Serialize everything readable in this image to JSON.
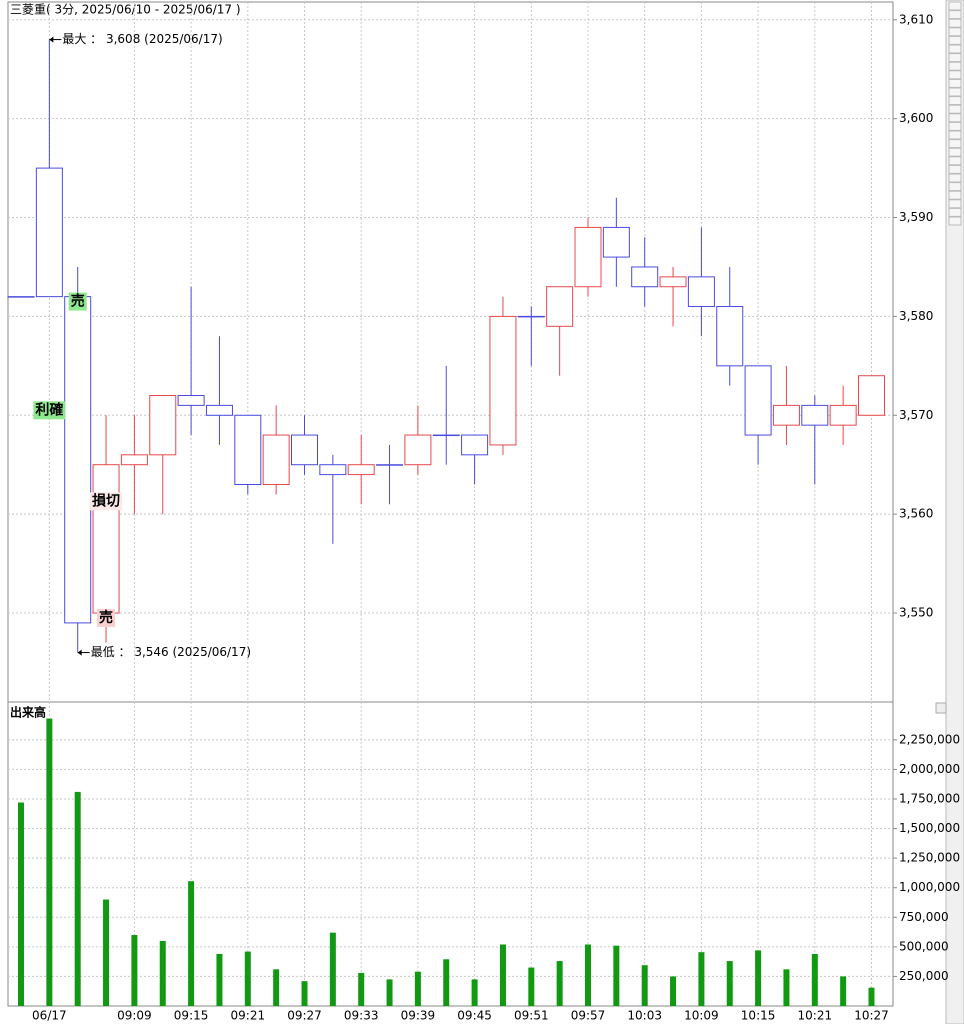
{
  "chart_data": [
    {
      "type": "candlestick",
      "title": "三菱重( 3分, 2025/06/10 - 2025/06/17 )",
      "open": [
        3582,
        3595,
        3582,
        3550,
        3565,
        3566,
        3572,
        3571,
        3570,
        3563,
        3568,
        3565,
        3564,
        3565,
        3565,
        3568,
        3568,
        3567,
        3580,
        3579,
        3583,
        3589,
        3585,
        3583,
        3584,
        3581,
        3575,
        3569,
        3571,
        3569,
        3570
      ],
      "high": [
        3582,
        3608,
        3585,
        3570,
        3570,
        3572,
        3583,
        3578,
        3570,
        3571,
        3570,
        3566,
        3568,
        3567,
        3571,
        3575,
        3568,
        3582,
        3581,
        3583,
        3590,
        3592,
        3588,
        3585,
        3589,
        3585,
        3575,
        3575,
        3572,
        3573,
        3574
      ],
      "low": [
        3582,
        3582,
        3546,
        3547,
        3560,
        3560,
        3568,
        3567,
        3562,
        3562,
        3564,
        3557,
        3561,
        3561,
        3564,
        3565,
        3563,
        3566,
        3575,
        3574,
        3582,
        3583,
        3581,
        3579,
        3578,
        3573,
        3565,
        3567,
        3563,
        3567,
        3570
      ],
      "close": [
        3582,
        3582,
        3549,
        3565,
        3566,
        3572,
        3571,
        3570,
        3563,
        3568,
        3565,
        3564,
        3565,
        3565,
        3568,
        3568,
        3566,
        3580,
        3580,
        3583,
        3589,
        3586,
        3583,
        3584,
        3581,
        3575,
        3568,
        3571,
        3569,
        3571,
        3574
      ],
      "up_color": "#e8474c",
      "down_color": "#4a4ae0",
      "ylim": [
        3541,
        3611.8
      ],
      "yticks": [
        {
          "value": 3550,
          "label": "3,550"
        },
        {
          "value": 3560,
          "label": "3,560"
        },
        {
          "value": 3570,
          "label": "3,570"
        },
        {
          "value": 3580,
          "label": "3,580"
        },
        {
          "value": 3590,
          "label": "3,590"
        },
        {
          "value": 3600,
          "label": "3,600"
        },
        {
          "value": 3610,
          "label": "3,610"
        }
      ],
      "grid": true,
      "annotations": [
        {
          "text": "最大 ： 3,608 (2025/06/17)",
          "index": 1,
          "value": 3608
        },
        {
          "text": "最低 ： 3,546 (2025/06/17)",
          "index": 2,
          "value": 3546
        }
      ],
      "signals": [
        {
          "text": "売",
          "index": 2,
          "value": 3581.5,
          "color": "#8ee88e"
        },
        {
          "text": "利確",
          "index": 1,
          "value": 3570.5,
          "color": "#8ee88e"
        },
        {
          "text": "損切",
          "index": 3,
          "value": 3561.3,
          "color": "#fde8e8"
        },
        {
          "text": "売",
          "index": 3,
          "value": 3549.5,
          "color": "#f8d0d0"
        }
      ]
    },
    {
      "type": "bar",
      "title": "出来高",
      "color": "#119911",
      "categories": [
        null,
        "06/17",
        null,
        null,
        "09:09",
        null,
        "09:15",
        null,
        "09:21",
        null,
        "09:27",
        null,
        "09:33",
        null,
        "09:39",
        null,
        "09:45",
        null,
        "09:51",
        null,
        "09:57",
        null,
        "10:03",
        null,
        "10:09",
        null,
        "10:15",
        null,
        "10:21",
        null,
        "10:27"
      ],
      "values": [
        1720000,
        2430000,
        1810000,
        900000,
        600000,
        550000,
        1055000,
        440000,
        460000,
        310000,
        210000,
        620000,
        280000,
        225000,
        290000,
        395000,
        225000,
        520000,
        325000,
        380000,
        520000,
        510000,
        345000,
        250000,
        455000,
        380000,
        470000,
        310000,
        440000,
        250000,
        155000
      ],
      "ylim": [
        0,
        2570000
      ],
      "yticks": [
        {
          "value": 250000,
          "label": "250,000"
        },
        {
          "value": 500000,
          "label": "500,000"
        },
        {
          "value": 750000,
          "label": "750,000"
        },
        {
          "value": 1000000,
          "label": "1,000,000"
        },
        {
          "value": 1250000,
          "label": "1,250,000"
        },
        {
          "value": 1500000,
          "label": "1,500,000"
        },
        {
          "value": 1750000,
          "label": "1,750,000"
        },
        {
          "value": 2000000,
          "label": "2,000,000"
        },
        {
          "value": 2250000,
          "label": "2,250,000"
        }
      ],
      "grid": true
    }
  ]
}
